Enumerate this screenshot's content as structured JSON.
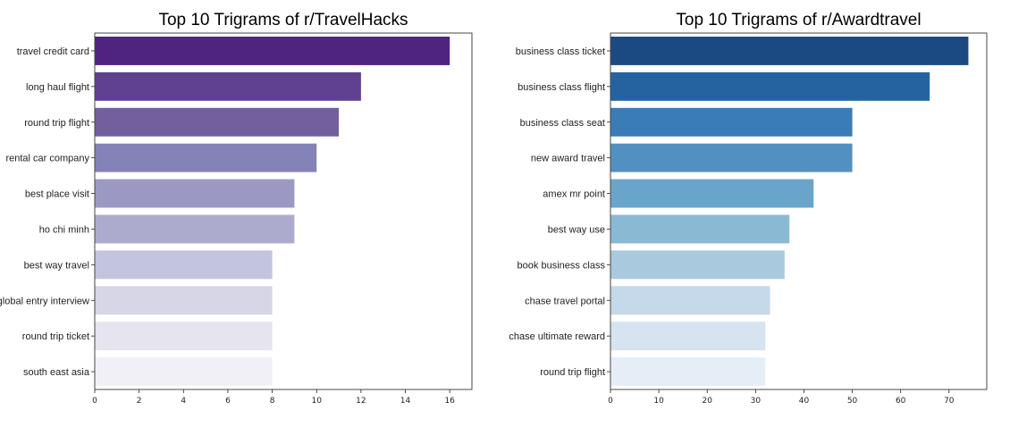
{
  "chart_data": [
    {
      "type": "bar",
      "orientation": "horizontal",
      "title": "Top 10 Trigrams of r/TravelHacks",
      "categories": [
        "travel credit card",
        "long haul flight",
        "round trip flight",
        "rental car company",
        "best place visit",
        "ho chi minh",
        "best way travel",
        "global entry interview",
        "round trip ticket",
        "south east asia"
      ],
      "values": [
        16,
        12,
        11,
        10,
        9,
        9,
        8,
        8,
        8,
        8
      ],
      "xlim": [
        0,
        17
      ],
      "xticks": [
        "0",
        "2",
        "4",
        "6",
        "8",
        "10",
        "12",
        "14",
        "16"
      ],
      "colors": [
        "#4f2380",
        "#604090",
        "#735f9e",
        "#8582b7",
        "#9b99c4",
        "#adabcd",
        "#c3c4de",
        "#d6d6e6",
        "#e5e4ef",
        "#f1f0f6"
      ]
    },
    {
      "type": "bar",
      "orientation": "horizontal",
      "title": "Top 10 Trigrams of r/Awardtravel",
      "categories": [
        "business class ticket",
        "business class flight",
        "business class seat",
        "new award travel",
        "amex mr point",
        "best way use",
        "book business class",
        "chase travel portal",
        "chase ultimate reward",
        "round trip flight"
      ],
      "values": [
        74,
        66,
        50,
        50,
        42,
        37,
        36,
        33,
        32,
        32
      ],
      "xlim": [
        0,
        77.8
      ],
      "xticks": [
        "0",
        "10",
        "20",
        "30",
        "40",
        "50",
        "60",
        "70"
      ],
      "colors": [
        "#1b4a83",
        "#2563a0",
        "#3a7cb6",
        "#5290c1",
        "#6ba4ca",
        "#8ab9d4",
        "#a9c9de",
        "#c5d9ea",
        "#d6e3f0",
        "#e5eef7"
      ]
    }
  ]
}
